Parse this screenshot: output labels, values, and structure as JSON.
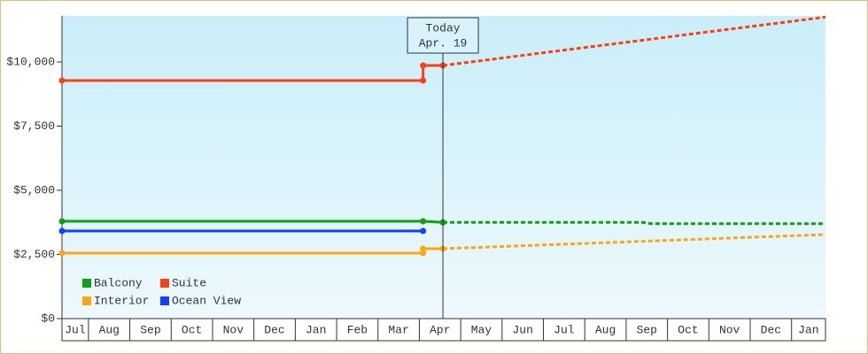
{
  "chart_data": {
    "type": "line",
    "ylim": [
      0,
      11800
    ],
    "yticks": [
      {
        "value": 0,
        "label": "$0"
      },
      {
        "value": 2500,
        "label": "$2,500"
      },
      {
        "value": 5000,
        "label": "$5,000"
      },
      {
        "value": 7500,
        "label": "$7,500"
      },
      {
        "value": 10000,
        "label": "$10,000"
      }
    ],
    "xlim": [
      0.36,
      18.82
    ],
    "xticks": [
      1,
      2,
      3,
      4,
      5,
      6,
      7,
      8,
      9,
      10,
      11,
      12,
      13,
      14,
      15,
      16,
      17,
      18
    ],
    "months": [
      "Jul",
      "Aug",
      "Sep",
      "Oct",
      "Nov",
      "Dec",
      "Jan",
      "Feb",
      "Mar",
      "Apr",
      "May",
      "Jun",
      "Jul",
      "Aug",
      "Sep",
      "Oct",
      "Nov",
      "Dec",
      "Jan"
    ],
    "today": {
      "x": 9.57,
      "title": "Today",
      "date": "Apr. 19"
    },
    "series": [
      {
        "name": "Balcony",
        "color": "#11a011",
        "x": [
          0.36,
          9.09,
          9.57
        ],
        "values": [
          3793,
          3793,
          3750
        ],
        "forecast_x": [
          9.57,
          14.4,
          14.6,
          18.82
        ],
        "forecast_values": [
          3750,
          3750,
          3700,
          3700
        ]
      },
      {
        "name": "Suite",
        "color": "#ff3f10",
        "x": [
          0.36,
          9.09,
          9.09,
          9.57
        ],
        "values": [
          9276,
          9276,
          9862,
          9862
        ],
        "forecast_x": [
          9.57,
          18.82
        ],
        "forecast_values": [
          9862,
          11750
        ]
      },
      {
        "name": "Interior",
        "color": "#ffa511",
        "x": [
          0.36,
          9.09,
          9.09,
          9.57
        ],
        "values": [
          2552,
          2552,
          2724,
          2724
        ],
        "forecast_x": [
          9.57,
          18.82
        ],
        "forecast_values": [
          2724,
          3276
        ]
      },
      {
        "name": "Ocean View",
        "color": "#1040ff",
        "x": [
          0.36,
          9.09
        ],
        "values": [
          3414,
          3414
        ]
      }
    ]
  }
}
